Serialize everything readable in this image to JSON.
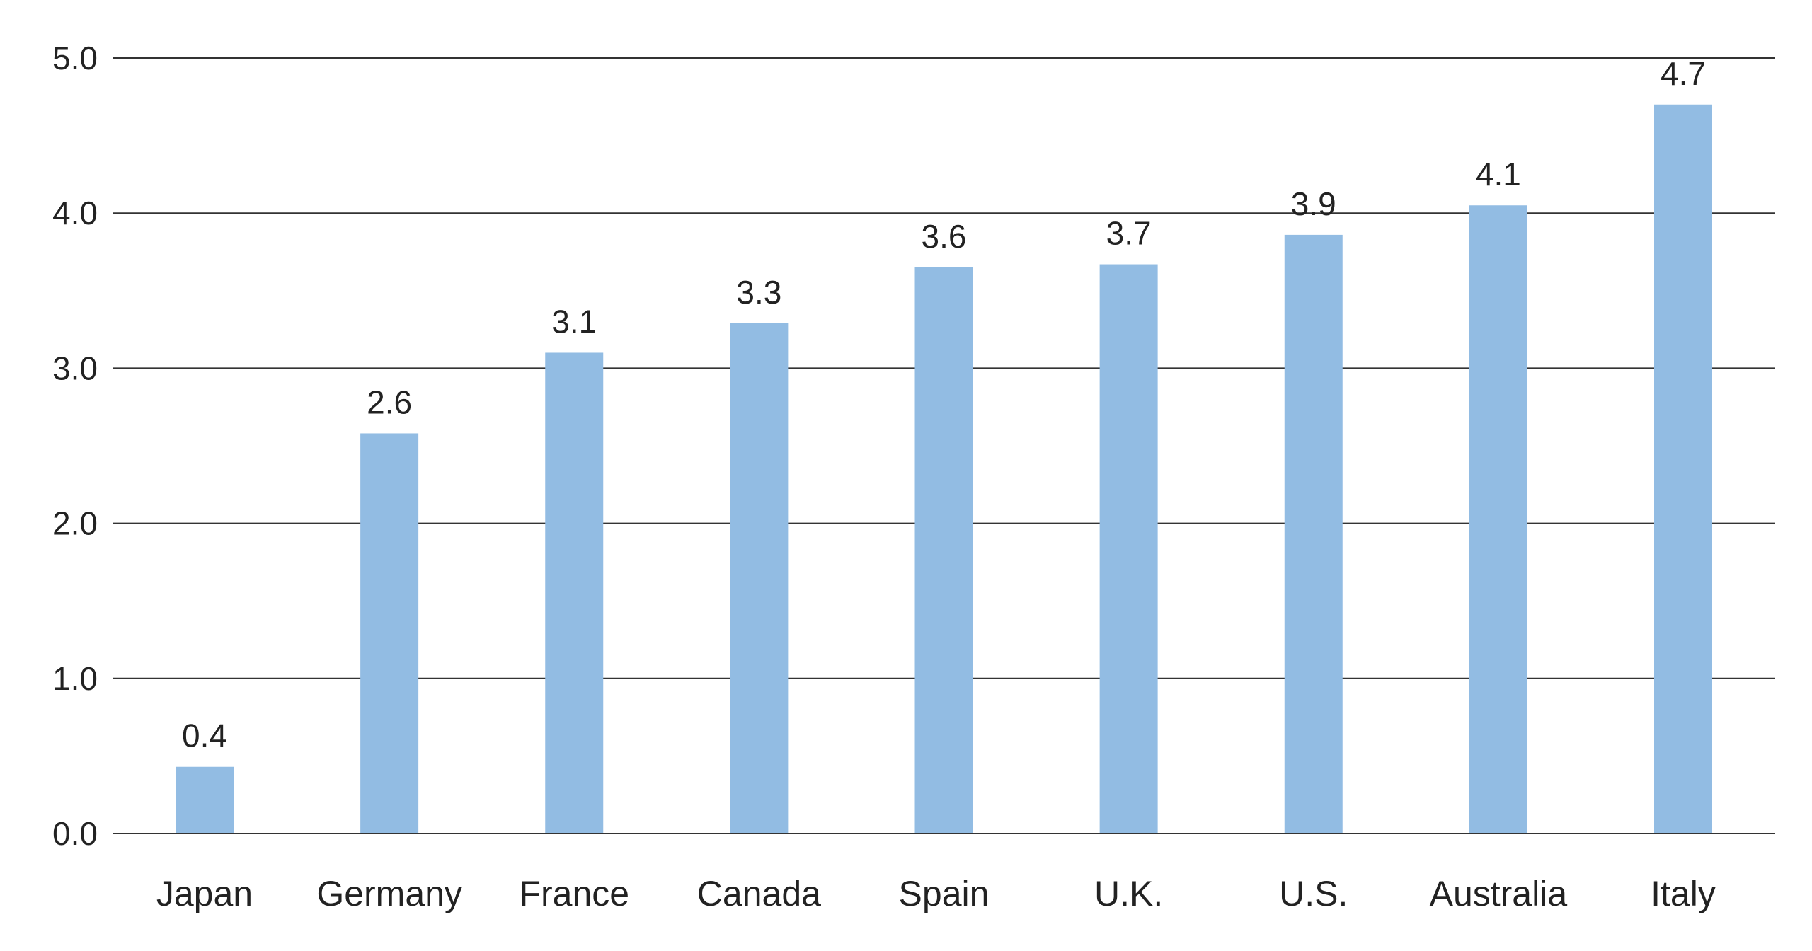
{
  "chart_data": {
    "type": "bar",
    "title": "",
    "xlabel": "",
    "ylabel": "",
    "categories": [
      "Japan",
      "Germany",
      "France",
      "Canada",
      "Spain",
      "U.K.",
      "U.S.",
      "Australia",
      "Italy"
    ],
    "values": [
      0.43,
      2.58,
      3.1,
      3.29,
      3.65,
      3.67,
      3.86,
      4.05,
      4.7
    ],
    "data_labels": [
      "0.4",
      "2.6",
      "3.1",
      "3.3",
      "3.6",
      "3.7",
      "3.9",
      "4.1",
      "4.7"
    ],
    "ylim": [
      0,
      5
    ],
    "yticks": [
      "0.0",
      "1.0",
      "2.0",
      "3.0",
      "4.0",
      "5.0"
    ],
    "grid": true,
    "legend": "none",
    "bar_color": "#92bce3",
    "gridline_color": "#333333"
  }
}
